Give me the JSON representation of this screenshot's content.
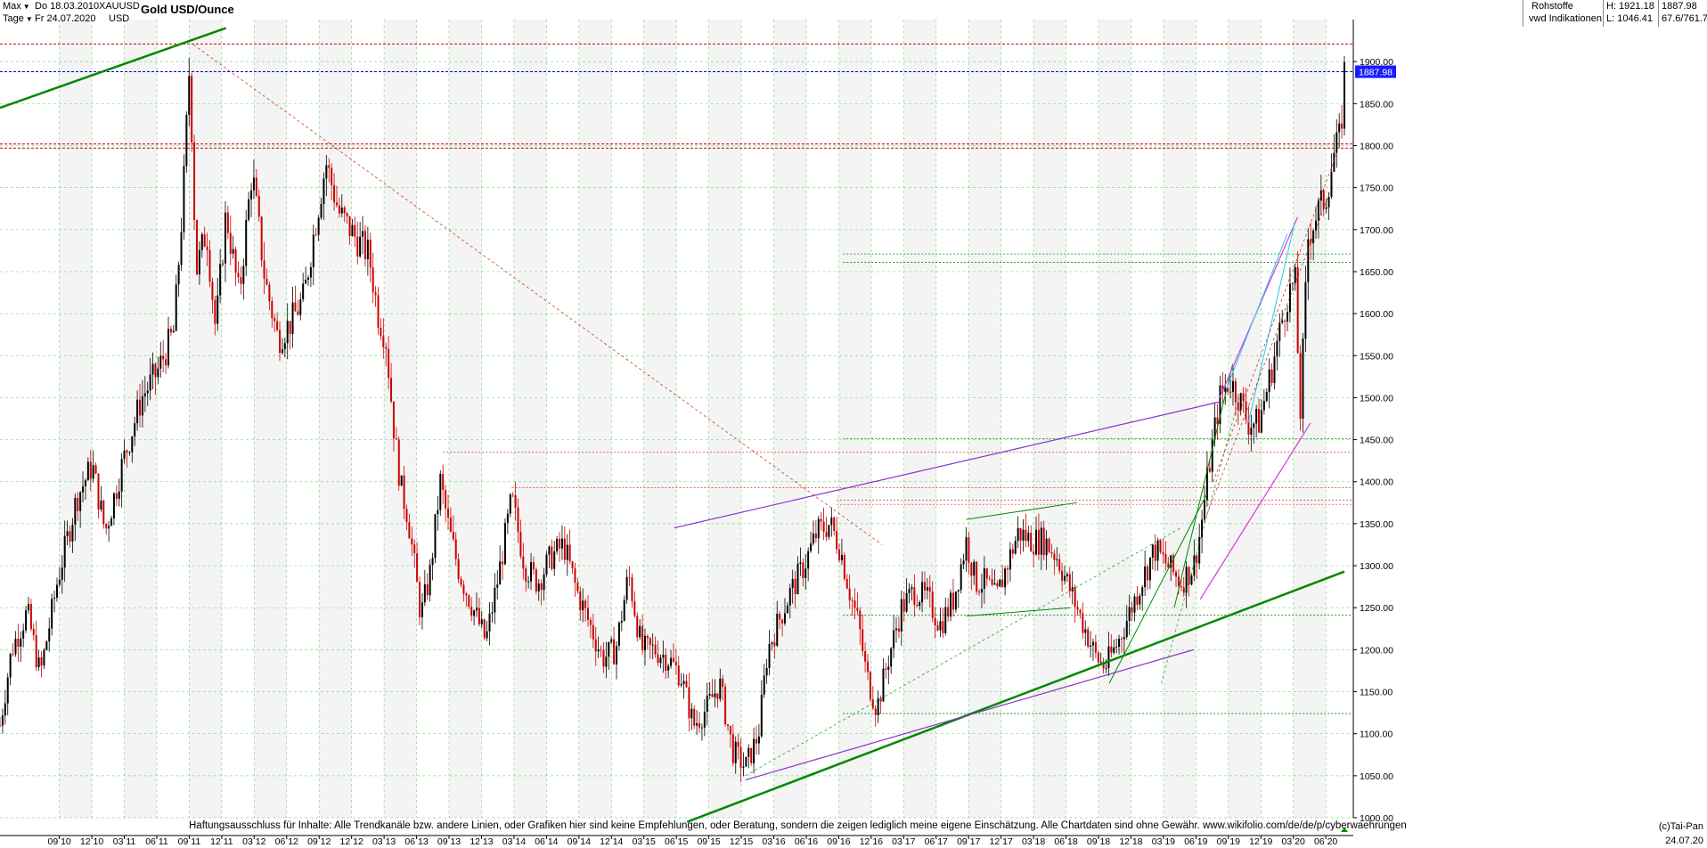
{
  "header": {
    "range_label": "Max",
    "from_date": "Do 18.03.2010",
    "interval_label": "Tage",
    "to_date": "Fr 24.07.2020",
    "symbol": "XAUUSD",
    "currency": "USD",
    "title": "Gold USD/Ounce",
    "category": "Rohstoffe",
    "source": "vwd Indikationen",
    "high_label": "H: 1921.18",
    "low_label": "L: 1046.41",
    "last_value": "1887.98",
    "change_label": "67.6/761.7"
  },
  "footer": {
    "disclaimer": "Haftungsausschluss für Inhalte: Alle Trendkanäle bzw. andere Linien, oder Grafiken hier sind keine Empfehlungen, oder Beratung, sondern die zeigen lediglich meine eigene Einschätzung. Alle Chartdaten sind ohne Gewähr.  www.wikifolio.com/de/de/p/cyberwaehrungen",
    "copyright": "(c)Tai-Pan",
    "last_date": "24.07.20"
  },
  "colors": {
    "grid": "#33cc33",
    "candle_up": "#000000",
    "candle_down": "#cc0000",
    "green_trend": "#008800",
    "purple_trend": "#8833cc",
    "magenta_trend": "#dd33dd",
    "cyan_trend": "#22ccee",
    "resistance": "#cc0000",
    "current_price": "#0000cc",
    "price_badge": "#1a1aff"
  },
  "chart_data": {
    "type": "candlestick",
    "title": "Gold USD/Ounce",
    "ylim": [
      1000,
      1950
    ],
    "y_ticks": [
      1000,
      1050,
      1100,
      1150,
      1200,
      1250,
      1300,
      1350,
      1400,
      1450,
      1500,
      1550,
      1600,
      1650,
      1700,
      1750,
      1800,
      1850,
      1900
    ],
    "y_tick_labels": [
      "1000.00",
      "1050.00",
      "1100.00",
      "1150.00",
      "1200.00",
      "1250.00",
      "1300.00",
      "1350.00",
      "1400.00",
      "1450.00",
      "1500.00",
      "1550.00",
      "1600.00",
      "1650.00",
      "1700.00",
      "1750.00",
      "1800.00",
      "1850.00",
      "1900.00"
    ],
    "x_tick_labels": [
      "09 10",
      "12 10",
      "03 11",
      "06 11",
      "09 11",
      "12 11",
      "03 12",
      "06 12",
      "09 12",
      "12 12",
      "03 13",
      "06 13",
      "09 13",
      "12 13",
      "03 14",
      "06 14",
      "09 14",
      "12 14",
      "03 15",
      "06 15",
      "09 15",
      "12 15",
      "03 16",
      "06 16",
      "09 16",
      "12 16",
      "03 17",
      "06 17",
      "09 17",
      "12 17",
      "03 18",
      "06 18",
      "09 18",
      "12 18",
      "03 19",
      "06 19",
      "09 19",
      "12 19",
      "03 20",
      "06 20"
    ],
    "x_start": 2010.21,
    "x_end": 2020.56,
    "grid": true,
    "price_path": [
      [
        2010.21,
        1110
      ],
      [
        2010.3,
        1200
      ],
      [
        2010.42,
        1245
      ],
      [
        2010.52,
        1170
      ],
      [
        2010.65,
        1280
      ],
      [
        2010.8,
        1380
      ],
      [
        2010.92,
        1420
      ],
      [
        2011.02,
        1340
      ],
      [
        2011.15,
        1420
      ],
      [
        2011.3,
        1500
      ],
      [
        2011.42,
        1530
      ],
      [
        2011.55,
        1580
      ],
      [
        2011.62,
        1740
      ],
      [
        2011.67,
        1900
      ],
      [
        2011.72,
        1650
      ],
      [
        2011.8,
        1700
      ],
      [
        2011.87,
        1580
      ],
      [
        2011.95,
        1720
      ],
      [
        2012.05,
        1620
      ],
      [
        2012.15,
        1770
      ],
      [
        2012.25,
        1640
      ],
      [
        2012.35,
        1570
      ],
      [
        2012.45,
        1590
      ],
      [
        2012.55,
        1620
      ],
      [
        2012.62,
        1690
      ],
      [
        2012.72,
        1780
      ],
      [
        2012.82,
        1720
      ],
      [
        2012.95,
        1690
      ],
      [
        2013.05,
        1670
      ],
      [
        2013.12,
        1600
      ],
      [
        2013.18,
        1570
      ],
      [
        2013.25,
        1450
      ],
      [
        2013.3,
        1390
      ],
      [
        2013.35,
        1360
      ],
      [
        2013.45,
        1240
      ],
      [
        2013.52,
        1290
      ],
      [
        2013.6,
        1400
      ],
      [
        2013.67,
        1340
      ],
      [
        2013.75,
        1290
      ],
      [
        2013.85,
        1250
      ],
      [
        2013.95,
        1210
      ],
      [
        2014.05,
        1290
      ],
      [
        2014.15,
        1380
      ],
      [
        2014.25,
        1300
      ],
      [
        2014.35,
        1280
      ],
      [
        2014.45,
        1310
      ],
      [
        2014.55,
        1325
      ],
      [
        2014.65,
        1270
      ],
      [
        2014.75,
        1230
      ],
      [
        2014.85,
        1190
      ],
      [
        2014.95,
        1200
      ],
      [
        2015.05,
        1290
      ],
      [
        2015.15,
        1200
      ],
      [
        2015.25,
        1200
      ],
      [
        2015.35,
        1190
      ],
      [
        2015.45,
        1170
      ],
      [
        2015.55,
        1110
      ],
      [
        2015.65,
        1130
      ],
      [
        2015.75,
        1160
      ],
      [
        2015.85,
        1080
      ],
      [
        2015.95,
        1060
      ],
      [
        2016.05,
        1100
      ],
      [
        2016.12,
        1200
      ],
      [
        2016.22,
        1240
      ],
      [
        2016.3,
        1270
      ],
      [
        2016.4,
        1300
      ],
      [
        2016.5,
        1340
      ],
      [
        2016.6,
        1350
      ],
      [
        2016.68,
        1320
      ],
      [
        2016.75,
        1270
      ],
      [
        2016.82,
        1230
      ],
      [
        2016.88,
        1170
      ],
      [
        2016.96,
        1130
      ],
      [
        2017.05,
        1190
      ],
      [
        2017.15,
        1250
      ],
      [
        2017.25,
        1270
      ],
      [
        2017.35,
        1260
      ],
      [
        2017.45,
        1230
      ],
      [
        2017.55,
        1260
      ],
      [
        2017.65,
        1330
      ],
      [
        2017.72,
        1280
      ],
      [
        2017.8,
        1280
      ],
      [
        2017.88,
        1260
      ],
      [
        2017.96,
        1300
      ],
      [
        2018.05,
        1340
      ],
      [
        2018.15,
        1330
      ],
      [
        2018.25,
        1330
      ],
      [
        2018.35,
        1310
      ],
      [
        2018.45,
        1270
      ],
      [
        2018.55,
        1230
      ],
      [
        2018.65,
        1190
      ],
      [
        2018.72,
        1180
      ],
      [
        2018.82,
        1210
      ],
      [
        2018.92,
        1250
      ],
      [
        2019.02,
        1290
      ],
      [
        2019.1,
        1320
      ],
      [
        2019.2,
        1300
      ],
      [
        2019.3,
        1280
      ],
      [
        2019.4,
        1300
      ],
      [
        2019.45,
        1340
      ],
      [
        2019.52,
        1420
      ],
      [
        2019.6,
        1500
      ],
      [
        2019.68,
        1520
      ],
      [
        2019.75,
        1500
      ],
      [
        2019.82,
        1470
      ],
      [
        2019.9,
        1470
      ],
      [
        2019.98,
        1520
      ],
      [
        2020.05,
        1570
      ],
      [
        2020.12,
        1620
      ],
      [
        2020.18,
        1640
      ],
      [
        2020.22,
        1480
      ],
      [
        2020.28,
        1690
      ],
      [
        2020.35,
        1720
      ],
      [
        2020.42,
        1740
      ],
      [
        2020.48,
        1790
      ],
      [
        2020.53,
        1810
      ],
      [
        2020.56,
        1888
      ]
    ],
    "horizontal_levels": {
      "red_resistance": [
        1921,
        1802,
        1797
      ],
      "current_price": 1887.98,
      "green_support": [
        1671,
        1661,
        1451,
        1241,
        1124
      ]
    },
    "trendlines": [
      {
        "color": "green_trend",
        "width": 2.5,
        "p1": [
          2010.21,
          1845
        ],
        "p2": [
          2011.95,
          1940
        ]
      },
      {
        "color": "green_trend",
        "width": 2.5,
        "p1": [
          2015.5,
          995
        ],
        "p2": [
          2020.56,
          1293
        ]
      },
      {
        "color": "purple_trend",
        "width": 1.2,
        "p1": [
          2015.4,
          1345
        ],
        "p2": [
          2019.6,
          1495
        ]
      },
      {
        "color": "purple_trend",
        "width": 1.2,
        "p1": [
          2015.95,
          1045
        ],
        "p2": [
          2019.4,
          1200
        ]
      },
      {
        "color": "green_trend",
        "width": 1,
        "p1": [
          2017.65,
          1355
        ],
        "p2": [
          2018.5,
          1375
        ]
      },
      {
        "color": "green_trend",
        "width": 1,
        "p1": [
          2017.65,
          1240
        ],
        "p2": [
          2018.45,
          1250
        ]
      },
      {
        "color": "green_trend",
        "width": 1,
        "p1": [
          2018.75,
          1160
        ],
        "p2": [
          2019.5,
          1385
        ]
      },
      {
        "color": "green_trend",
        "width": 1,
        "p1": [
          2019.25,
          1250
        ],
        "p2": [
          2019.7,
          1540
        ]
      },
      {
        "color": "magenta_trend",
        "width": 1.2,
        "p1": [
          2019.6,
          1500
        ],
        "p2": [
          2020.2,
          1715
        ]
      },
      {
        "color": "magenta_trend",
        "width": 1.2,
        "p1": [
          2019.45,
          1260
        ],
        "p2": [
          2020.3,
          1470
        ]
      },
      {
        "color": "cyan_trend",
        "width": 1,
        "p1": [
          2019.82,
          1470
        ],
        "p2": [
          2020.18,
          1710
        ]
      },
      {
        "color": "cyan_trend",
        "width": 1,
        "p1": [
          2019.65,
          1510
        ],
        "p2": [
          2020.12,
          1695
        ]
      }
    ],
    "dashed_lines": [
      {
        "color": "resistance",
        "p1": [
          2011.7,
          1920
        ],
        "p2": [
          2017.0,
          1325
        ]
      },
      {
        "color": "resistance",
        "p1": [
          2019.55,
          1400
        ],
        "p2": [
          2020.5,
          1790
        ]
      },
      {
        "color": "green_trend",
        "p1": [
          2015.95,
          1050
        ],
        "p2": [
          2019.3,
          1345
        ]
      },
      {
        "color": "green_trend",
        "p1": [
          2019.15,
          1160
        ],
        "p2": [
          2019.75,
          1500
        ]
      },
      {
        "color": "resistance",
        "p1": [
          2019.5,
          1360
        ],
        "p2": [
          2020.45,
          1745
        ]
      }
    ]
  }
}
